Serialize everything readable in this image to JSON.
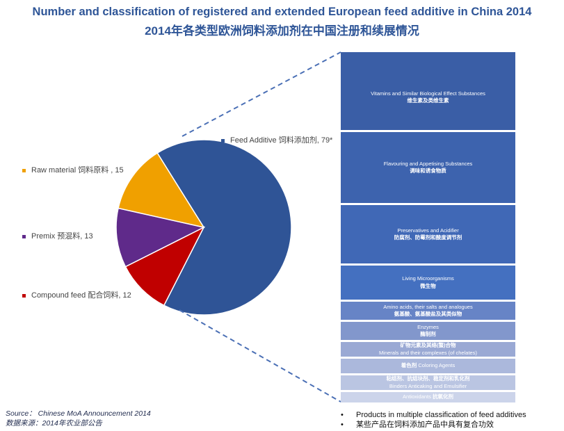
{
  "title_en": "Number and classification of registered and extended European feed additive in China 2014",
  "title_cn": "2014年各类型欧洲饲料添加剂在中国注册和续展情况",
  "chart_data": {
    "type": "pie",
    "slices": [
      {
        "name": "Feed Additive 饲料添加剂",
        "value": 79,
        "label": "Feed Additive 饲料添加剂, 79*",
        "color": "#2f5496"
      },
      {
        "name": "Compound feed 配合饲料",
        "value": 12,
        "label": "Compound feed 配合饲料, 12",
        "color": "#c00000"
      },
      {
        "name": "Premix 预混料",
        "value": 13,
        "label": "Premix 预混料, 13",
        "color": "#5f2a8a"
      },
      {
        "name": "Raw material 饲料原料",
        "value": 15,
        "label": "Raw material 饲料原料 , 15",
        "color": "#f0a000"
      }
    ],
    "breakdown_of": "Feed Additive 饲料添加剂",
    "breakdown": [
      {
        "en": "Vitamins and Similar Biological Effect Substances",
        "cn": "维生素及类维生素",
        "weight": 112,
        "color": "#3a5ea6"
      },
      {
        "en": "Flavouring and Appetising Substances",
        "cn": "调味和诱食物质",
        "weight": 102,
        "color": "#3d63ae"
      },
      {
        "en": "Preservatives and Acidifier",
        "cn": "防腐剂、防霉剂和酸度调节剂",
        "weight": 84,
        "color": "#4068b6"
      },
      {
        "en": "Living Microorganisms",
        "cn": "微生物",
        "weight": 49,
        "color": "#4470c0"
      },
      {
        "en": "Amino acids, their salts and  analogues",
        "cn": "氨基酸、氨基酸盐及其类似物",
        "weight": 26,
        "color": "#6784c6"
      },
      {
        "cn": "酶制剂",
        "en": "Enzymes",
        "weight": 26,
        "color": "#8297cc",
        "order": "en-first"
      },
      {
        "cn": "矿物元素及其络(螯)合物",
        "en": "Minerals and their complexes (of chelates)",
        "weight": 21,
        "color": "#9aa9d4",
        "order": "cn-first"
      },
      {
        "cn": "着色剂",
        "en": "Coloring Agents",
        "weight": 21,
        "color": "#abb8dc",
        "order": "inline"
      },
      {
        "cn": "粘结剂、抗结块剂、稳定剂和乳化剂",
        "en": "Binders Anticaking and Emulsifier",
        "weight": 21,
        "color": "#bac5e2",
        "order": "cn-first"
      },
      {
        "en": "Antioxidants",
        "cn": "抗氧化剂",
        "weight": 15,
        "color": "#ccd4ea",
        "order": "inline"
      }
    ]
  },
  "source": {
    "en": "Source：  Chinese MoA Announcement 2014",
    "cn": "数据来源：2014年农业部公告"
  },
  "notes": {
    "bullet": "•",
    "items": [
      "Products in multiple classification of feed additives",
      "某些产品在饲料添加产品中具有复合功效"
    ]
  }
}
